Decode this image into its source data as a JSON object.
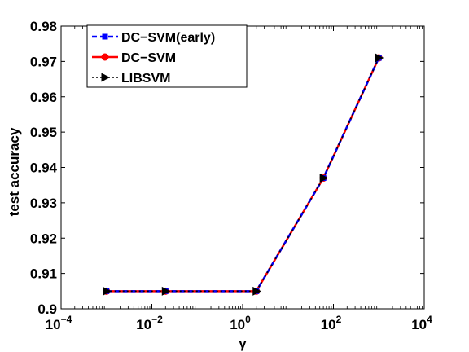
{
  "chart_data": {
    "type": "line",
    "xlabel": "γ",
    "ylabel": "test accuracy",
    "xscale": "log",
    "xlim": [
      0.0001,
      10000
    ],
    "ylim": [
      0.9,
      0.98
    ],
    "x_ticks": [
      {
        "value": 0.0001,
        "base": "10",
        "exp": "−4"
      },
      {
        "value": 0.01,
        "base": "10",
        "exp": "−2"
      },
      {
        "value": 1,
        "base": "10",
        "exp": "0"
      },
      {
        "value": 100,
        "base": "10",
        "exp": "2"
      },
      {
        "value": 10000,
        "base": "10",
        "exp": "4"
      }
    ],
    "y_ticks": [
      "0.9",
      "0.91",
      "0.92",
      "0.93",
      "0.94",
      "0.95",
      "0.96",
      "0.97",
      "0.98"
    ],
    "grid": false,
    "legend_position": "top-left",
    "x": [
      0.001,
      0.02,
      2,
      60,
      1000
    ],
    "series": [
      {
        "name": "DC−SVM(early)",
        "values": [
          0.905,
          0.905,
          0.905,
          0.937,
          0.971
        ],
        "color": "#0000ff",
        "line_style": "dashed",
        "marker": "square"
      },
      {
        "name": "DC−SVM",
        "values": [
          0.905,
          0.905,
          0.905,
          0.937,
          0.971
        ],
        "color": "#ff0000",
        "line_style": "solid",
        "marker": "circle"
      },
      {
        "name": "LIBSVM",
        "values": [
          0.905,
          0.905,
          0.905,
          0.937,
          0.971
        ],
        "color": "#000000",
        "line_style": "dotted",
        "marker": "triangle-right"
      }
    ]
  }
}
